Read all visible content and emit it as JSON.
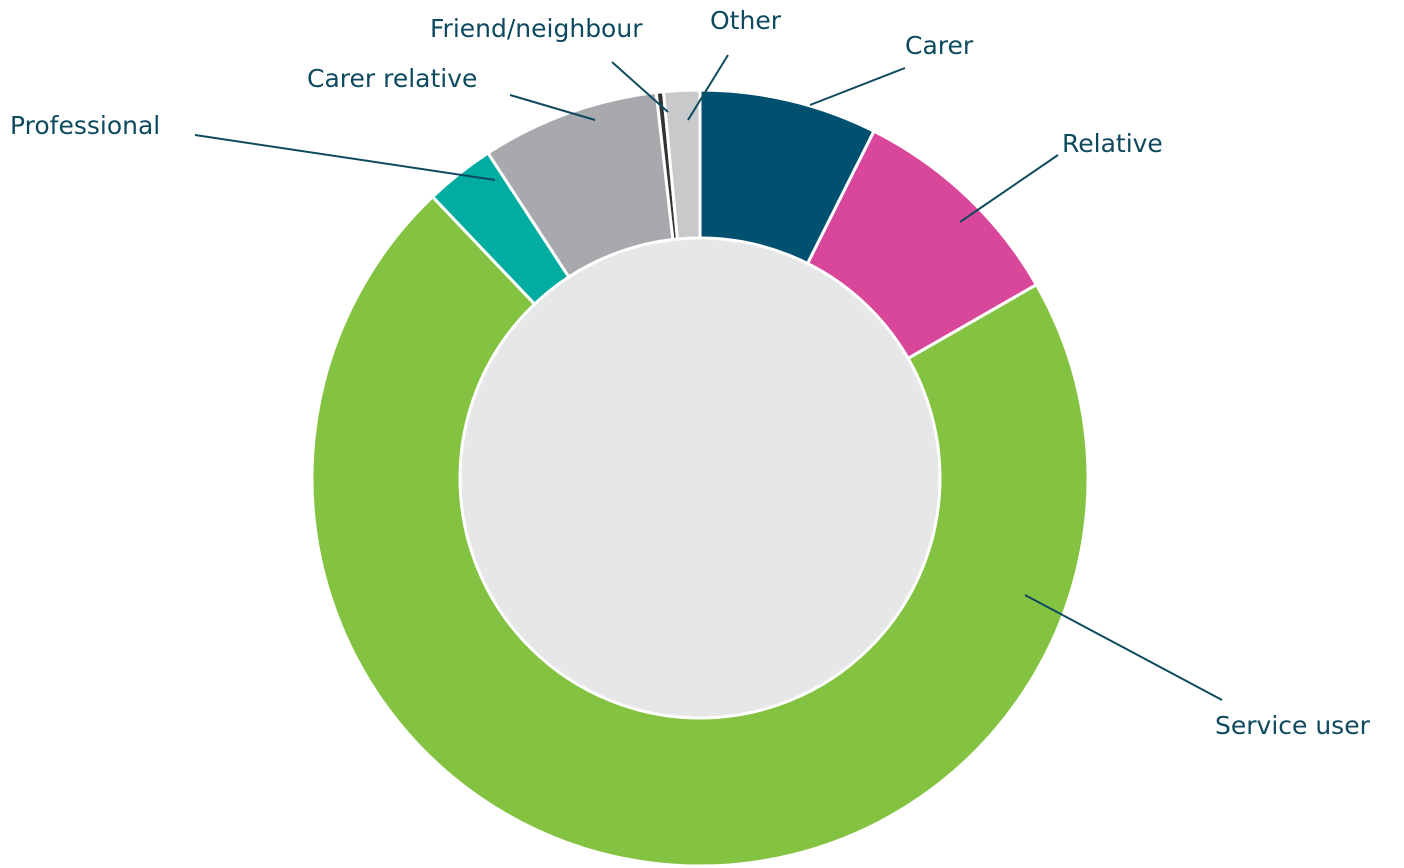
{
  "chart_data": {
    "type": "donut",
    "categories": [
      "Carer",
      "Relative",
      "Service user",
      "Professional",
      "Carer relative",
      "Friend/neighbour",
      "Other"
    ],
    "values": [
      7.4,
      9.3,
      71.2,
      2.9,
      7.4,
      0.3,
      1.5
    ],
    "colors": [
      "#00506f",
      "#d9479a",
      "#84c341",
      "#00ada0",
      "#a7a9ac",
      "#333333",
      "#c8c9cb"
    ]
  }
}
